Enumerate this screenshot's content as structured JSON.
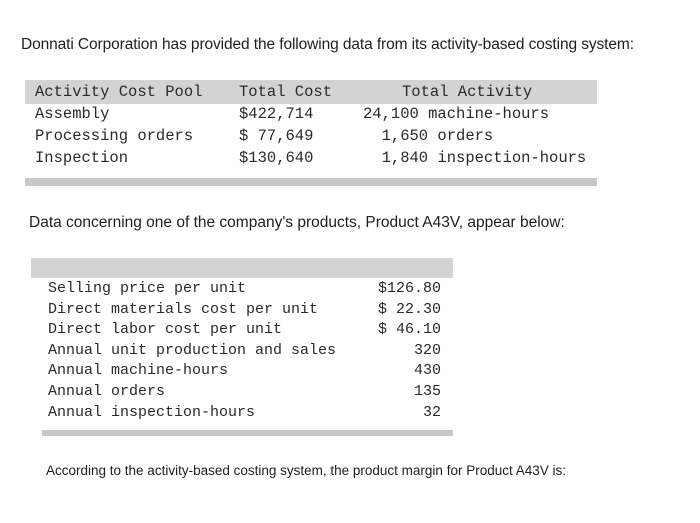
{
  "intro": "Donnati Corporation has provided the following data from its activity-based costing system:",
  "activity_table": {
    "headers": {
      "pool": "Activity Cost Pool",
      "cost": "Total Cost",
      "activity": "Total Activity"
    },
    "rows": [
      {
        "pool": "Assembly",
        "cost": "$422,714",
        "activity": "24,100 machine-hours"
      },
      {
        "pool": "Processing orders",
        "cost": "$ 77,649",
        "activity": "  1,650 orders"
      },
      {
        "pool": "Inspection",
        "cost": "$130,640",
        "activity": "  1,840 inspection-hours"
      }
    ]
  },
  "product_intro": "Data concerning one of the company's products, Product A43V, appear below:",
  "product_table": {
    "rows": [
      {
        "label": "Selling price per unit",
        "value": "$126.80"
      },
      {
        "label": "Direct materials cost per unit",
        "value": "$ 22.30"
      },
      {
        "label": "Direct labor cost per unit",
        "value": "$ 46.10"
      },
      {
        "label": "Annual unit production and sales",
        "value": "320"
      },
      {
        "label": "Annual machine-hours",
        "value": "430"
      },
      {
        "label": "Annual orders",
        "value": "135"
      },
      {
        "label": "Annual inspection-hours",
        "value": "32"
      }
    ]
  },
  "question": "According to the activity-based costing system, the product margin for Product A43V is:"
}
